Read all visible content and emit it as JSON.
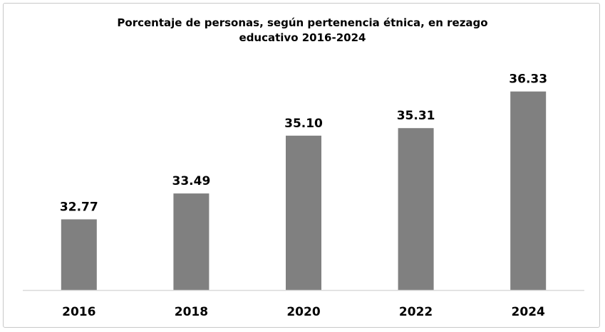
{
  "chart_data": {
    "type": "bar",
    "title_line1": "Porcentaje de personas, según pertenencia étnica, en rezago",
    "title_line2": "educativo 2016-2024",
    "xlabel": "",
    "ylabel": "",
    "categories": [
      "2016",
      "2018",
      "2020",
      "2022",
      "2024"
    ],
    "values": [
      32.77,
      33.49,
      35.1,
      35.31,
      36.33
    ],
    "value_labels": [
      "32.77",
      "33.49",
      "35.10",
      "35.31",
      "36.33"
    ],
    "ylim": [
      30.8,
      36.7
    ],
    "bar_color": "#808080",
    "axis_color": "#d9d9d9",
    "grid": false,
    "legend": "none"
  }
}
